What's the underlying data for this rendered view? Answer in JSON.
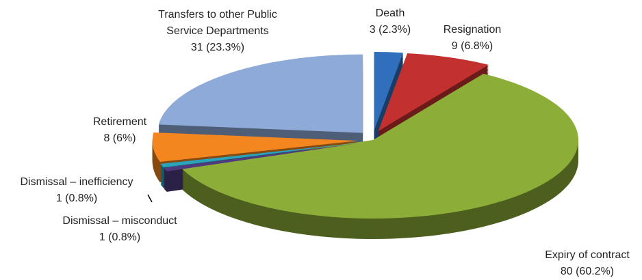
{
  "chart_data": {
    "type": "pie",
    "categories": [
      "Death",
      "Resignation",
      "Expiry of contract",
      "Dismissal – misconduct",
      "Dismissal – inefficiency",
      "Retirement",
      "Transfers to other Public Service Departments"
    ],
    "values": [
      3,
      9,
      80,
      1,
      1,
      8,
      31
    ],
    "value_labels": [
      "3 (2.3%)",
      "9 (6.8%)",
      "80 (60.2%)",
      "1 (0.8%)",
      "1 (0.8%)",
      "8 (6%)",
      "31 (23.3%)"
    ],
    "colors": [
      "#2f6fbb",
      "#c2312f",
      "#8cad37",
      "#4f3a80",
      "#2aa3bb",
      "#f4861f",
      "#8eaad8"
    ]
  }
}
